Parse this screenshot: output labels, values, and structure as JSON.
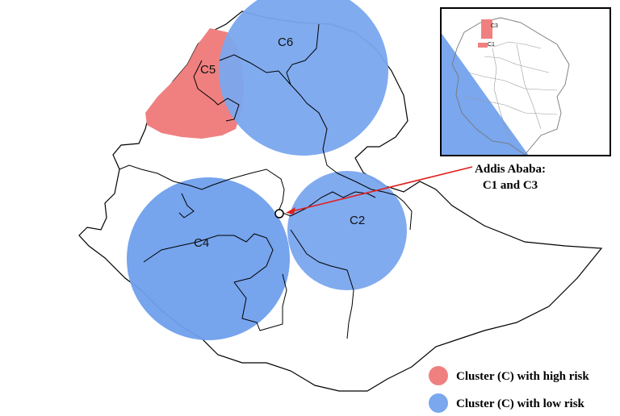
{
  "map": {
    "clusters": [
      {
        "id": "C5",
        "label": "C5",
        "risk": "high"
      },
      {
        "id": "C6",
        "label": "C6",
        "risk": "low"
      },
      {
        "id": "C4",
        "label": "C4",
        "risk": "low"
      },
      {
        "id": "C2",
        "label": "C2",
        "risk": "low"
      }
    ],
    "inset": {
      "labels": [
        "C3",
        "C1"
      ]
    },
    "annotation": {
      "line1": "Addis Ababa:",
      "line2": "C1 and C3"
    }
  },
  "legend": {
    "high": {
      "label": "Cluster (C) with high risk",
      "color": "#f08080"
    },
    "low": {
      "label": "Cluster (C) with low risk",
      "color": "#7aa7ee"
    }
  },
  "colors": {
    "high_risk": "#f08080",
    "low_risk": "#7aa7ee",
    "arrow": "#e02020",
    "boundary": "#000000"
  }
}
